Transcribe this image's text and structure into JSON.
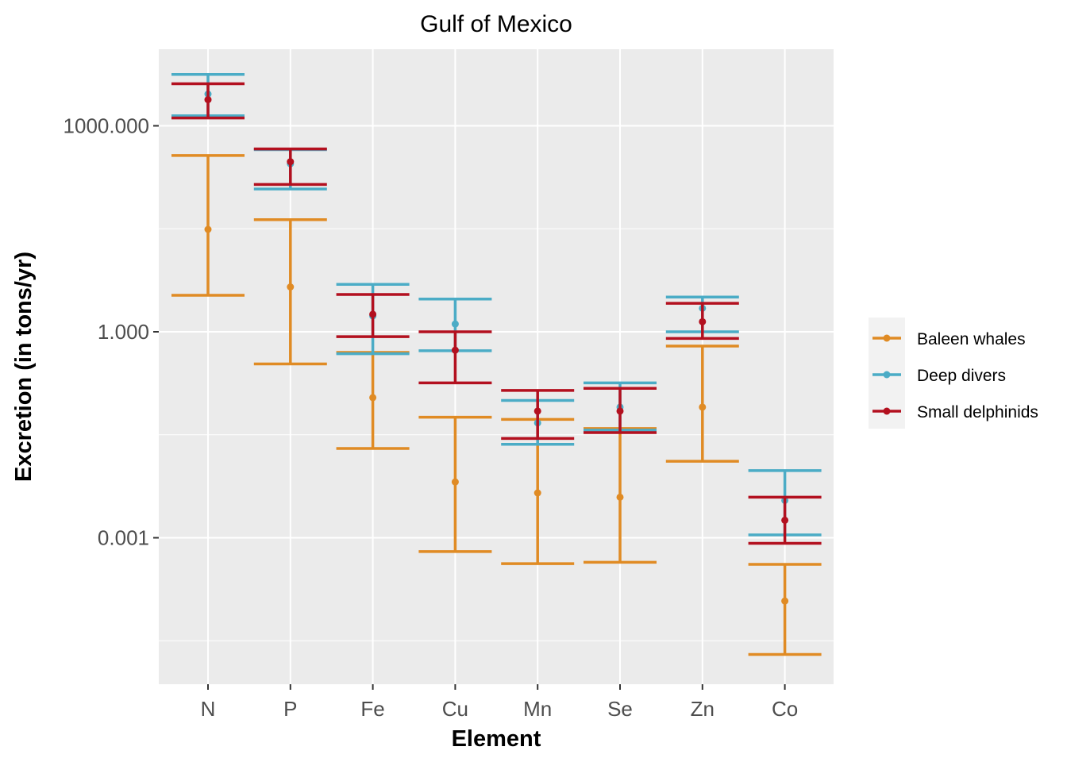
{
  "chart_data": {
    "type": "errorbar",
    "title": "Gulf of Mexico",
    "xlabel": "Element",
    "ylabel": "Excretion (in tons/yr)",
    "y_scale": "log10",
    "ylim": [
      2e-05,
      12000
    ],
    "y_ticks": [
      {
        "value": 0.001,
        "label": "0.001"
      },
      {
        "value": 1,
        "label": "1.000"
      },
      {
        "value": 1000,
        "label": "1000.000"
      }
    ],
    "categories": [
      "N",
      "P",
      "Fe",
      "Cu",
      "Mn",
      "Se",
      "Zn",
      "Co"
    ],
    "grid": true,
    "legend_position": "right",
    "series": [
      {
        "name": "Baleen whales",
        "color": "#E08B24",
        "points": [
          {
            "mean": 31,
            "lower": 3.4,
            "upper": 370
          },
          {
            "mean": 4.5,
            "lower": 0.34,
            "upper": 43
          },
          {
            "mean": 0.11,
            "lower": 0.02,
            "upper": 0.5
          },
          {
            "mean": 0.0065,
            "lower": 0.00063,
            "upper": 0.057
          },
          {
            "mean": 0.0045,
            "lower": 0.00042,
            "upper": 0.053
          },
          {
            "mean": 0.0039,
            "lower": 0.00044,
            "upper": 0.039
          },
          {
            "mean": 0.08,
            "lower": 0.013,
            "upper": 0.62
          },
          {
            "mean": 0.00012,
            "lower": 2e-05,
            "upper": 0.00041
          }
        ]
      },
      {
        "name": "Deep divers",
        "color": "#4BACC6",
        "points": [
          {
            "mean": 2900,
            "lower": 1400,
            "upper": 5600
          },
          {
            "mean": 280,
            "lower": 120,
            "upper": 450
          },
          {
            "mean": 1.7,
            "lower": 0.48,
            "upper": 4.9
          },
          {
            "mean": 1.3,
            "lower": 0.53,
            "upper": 3.0
          },
          {
            "mean": 0.047,
            "lower": 0.023,
            "upper": 0.1
          },
          {
            "mean": 0.08,
            "lower": 0.037,
            "upper": 0.18
          },
          {
            "mean": 2.2,
            "lower": 1.0,
            "upper": 3.2
          },
          {
            "mean": 0.0035,
            "lower": 0.0011,
            "upper": 0.0095
          }
        ]
      },
      {
        "name": "Small delphinids",
        "color": "#B3101F",
        "points": [
          {
            "mean": 2400,
            "lower": 1300,
            "upper": 4100
          },
          {
            "mean": 300,
            "lower": 140,
            "upper": 460
          },
          {
            "mean": 1.8,
            "lower": 0.85,
            "upper": 3.5
          },
          {
            "mean": 0.54,
            "lower": 0.18,
            "upper": 1.0
          },
          {
            "mean": 0.07,
            "lower": 0.028,
            "upper": 0.14
          },
          {
            "mean": 0.07,
            "lower": 0.034,
            "upper": 0.15
          },
          {
            "mean": 1.4,
            "lower": 0.8,
            "upper": 2.6
          },
          {
            "mean": 0.0018,
            "lower": 0.00083,
            "upper": 0.0039
          }
        ]
      }
    ]
  }
}
